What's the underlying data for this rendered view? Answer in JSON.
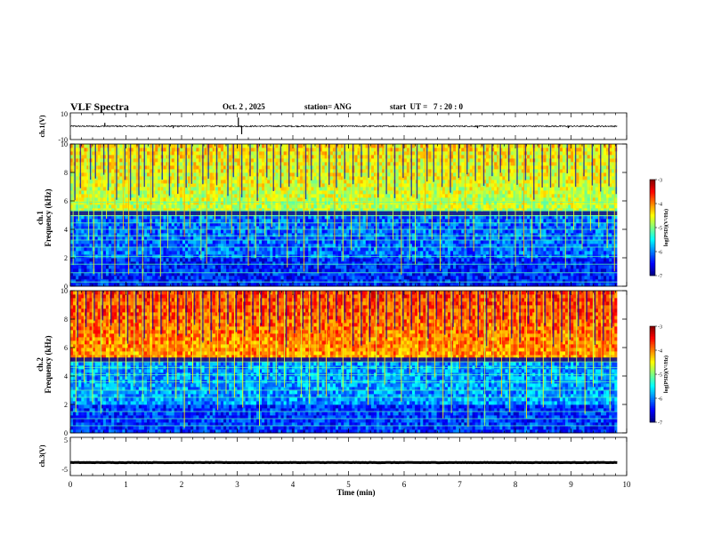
{
  "header": {
    "title": "VLF Spectra",
    "date": "Oct. 2 , 2025",
    "station": "station= ANG",
    "start": "start  UT =   7 : 20 : 0"
  },
  "chart_data": [
    {
      "type": "line",
      "name": "ch1-waveform",
      "ylabel": "ch.1(V)",
      "ylim": [
        -10,
        10
      ],
      "yticks": [
        10,
        -10
      ],
      "baseline": 0,
      "noise_amplitude": 0.5,
      "spikes": [
        {
          "t": 0.62,
          "v": 2.5
        },
        {
          "t": 1.85,
          "v": -1.5
        },
        {
          "t": 3.02,
          "v": 6.5
        },
        {
          "t": 3.08,
          "v": -6
        },
        {
          "t": 7.32,
          "v": -1.5
        },
        {
          "t": 8.95,
          "v": -1.4
        }
      ]
    },
    {
      "type": "heatmap",
      "name": "ch1-spectrogram",
      "ylabel_top": "ch.1",
      "ylabel": "Frequency (kHz)",
      "ylim": [
        0,
        10
      ],
      "yticks": [
        0,
        2,
        4,
        6,
        8,
        10
      ],
      "time_range_min": [
        0,
        9.83
      ],
      "colorbar": {
        "label": "log(PSD)(V²/Hz)",
        "range": [
          -7,
          -3
        ],
        "ticks": [
          -3,
          -4,
          -5,
          -6,
          -7
        ]
      },
      "levels": {
        "upper_band": -4.8,
        "mid_band": -6.1,
        "low_band": -6.4
      },
      "band_edge_khz": 5.0,
      "tone_lines_khz": [
        0.3,
        0.95,
        1.55,
        2.1,
        2.75,
        3.25,
        3.55,
        4.0,
        4.45,
        4.95,
        5.3,
        5.9
      ],
      "bursts_min": [
        0.05,
        0.15,
        0.33,
        0.42,
        0.57,
        0.65,
        0.8,
        0.95,
        1.05,
        1.2,
        1.3,
        1.45,
        1.62,
        1.75,
        1.9,
        2.05,
        2.15,
        2.35,
        2.45,
        2.6,
        2.8,
        2.9,
        3.05,
        3.2,
        3.33,
        3.5,
        3.62,
        3.75,
        3.9,
        4.05,
        4.2,
        4.3,
        4.45,
        4.62,
        4.75,
        4.9,
        5.05,
        5.2,
        5.33,
        5.5,
        5.65,
        5.8,
        5.95,
        6.1,
        6.2,
        6.38,
        6.5,
        6.65,
        6.8,
        6.95,
        7.1,
        7.25,
        7.4,
        7.55,
        7.7,
        7.85,
        8.0,
        8.15,
        8.3,
        8.45,
        8.6,
        8.75,
        8.9,
        9.05,
        9.2,
        9.35,
        9.5,
        9.65,
        9.78
      ]
    },
    {
      "type": "heatmap",
      "name": "ch2-spectrogram",
      "ylabel_top": "ch.2",
      "ylabel": "Frequency (kHz)",
      "ylim": [
        0,
        10
      ],
      "yticks": [
        0,
        2,
        4,
        6,
        8,
        10
      ],
      "time_range_min": [
        0,
        9.83
      ],
      "colorbar": {
        "label": "log(PSD)(V²/Hz)",
        "range": [
          -7,
          -3
        ],
        "ticks": [
          -3,
          -4,
          -5,
          -6,
          -7
        ]
      },
      "levels": {
        "upper_band": -4.1,
        "mid_band": -5.9,
        "low_band": -6.3
      },
      "band_edge_khz": 5.0,
      "tone_lines_khz": [
        0.5,
        1.0,
        1.5,
        2.5,
        3.0,
        3.6,
        4.1,
        4.6,
        5.0
      ],
      "bursts_min": [
        0.1,
        0.25,
        0.4,
        0.55,
        0.7,
        0.85,
        1.0,
        1.15,
        1.3,
        1.45,
        1.6,
        1.75,
        1.9,
        2.05,
        2.2,
        2.35,
        2.5,
        2.65,
        2.8,
        2.95,
        3.1,
        3.25,
        3.4,
        3.55,
        3.7,
        3.85,
        4.0,
        4.15,
        4.3,
        4.45,
        4.6,
        4.75,
        4.9,
        5.05,
        5.2,
        5.35,
        5.5,
        5.65,
        5.8,
        5.95,
        6.1,
        6.25,
        6.4,
        6.55,
        6.7,
        6.85,
        7.0,
        7.15,
        7.3,
        7.45,
        7.6,
        7.75,
        7.9,
        8.05,
        8.2,
        8.35,
        8.5,
        8.65,
        8.8,
        8.95,
        9.1,
        9.25,
        9.4,
        9.55,
        9.7
      ]
    },
    {
      "type": "line",
      "name": "ch3-waveform",
      "ylabel": "ch.3(V)",
      "ylim": [
        -5,
        5
      ],
      "yticks": [
        5,
        -5
      ],
      "baseline": -1.6,
      "noise_amplitude": 0.25
    }
  ],
  "x_axis": {
    "label": "Time (min)",
    "range": [
      0,
      10
    ],
    "ticks": [
      "0",
      "1",
      "2",
      "3",
      "4",
      "5",
      "6",
      "7",
      "8",
      "9",
      "10"
    ]
  },
  "colors": {
    "frame": "#000000",
    "background": "#ffffff"
  }
}
